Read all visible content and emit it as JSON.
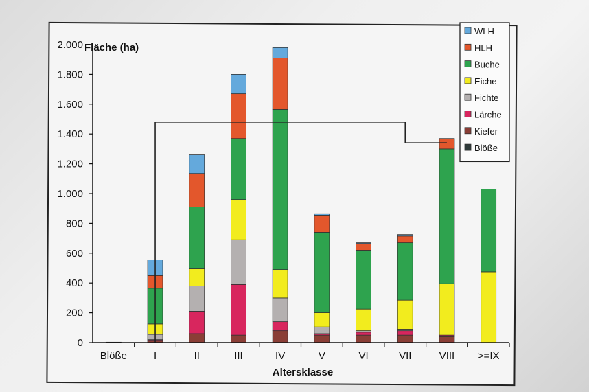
{
  "chart_data": {
    "type": "bar",
    "stacked": true,
    "ylabel": "Fläche (ha)",
    "xlabel": "Altersklasse",
    "ylim": [
      0,
      2000
    ],
    "yticks": [
      0,
      200,
      400,
      600,
      800,
      1000,
      1200,
      1400,
      1600,
      1800,
      2000
    ],
    "ytick_labels": [
      "0",
      "200",
      "400",
      "600",
      "800",
      "1.000",
      "1.200",
      "1.400",
      "1.600",
      "1.800",
      "2.000"
    ],
    "categories": [
      "Blöße",
      "I",
      "II",
      "III",
      "IV",
      "V",
      "VI",
      "VII",
      "VIII",
      ">=IX"
    ],
    "legend_position": "top-right",
    "grid": false,
    "series": [
      {
        "name": "Blöße",
        "color": "#2f3b3a",
        "values": [
          3,
          0,
          0,
          0,
          0,
          0,
          0,
          0,
          0,
          0
        ]
      },
      {
        "name": "Kiefer",
        "color": "#8a3e36",
        "values": [
          0,
          15,
          60,
          50,
          80,
          50,
          50,
          50,
          40,
          0
        ]
      },
      {
        "name": "Lärche",
        "color": "#d8265e",
        "values": [
          0,
          5,
          150,
          340,
          60,
          10,
          20,
          30,
          10,
          0
        ]
      },
      {
        "name": "Fichte",
        "color": "#b4b0b0",
        "values": [
          0,
          35,
          170,
          300,
          160,
          45,
          10,
          10,
          0,
          0
        ]
      },
      {
        "name": "Eiche",
        "color": "#f2ec1e",
        "values": [
          0,
          70,
          115,
          270,
          190,
          95,
          145,
          195,
          345,
          475
        ]
      },
      {
        "name": "Buche",
        "color": "#2ea34e",
        "values": [
          0,
          240,
          415,
          410,
          1075,
          540,
          395,
          385,
          905,
          555
        ]
      },
      {
        "name": "HLH",
        "color": "#e3572c",
        "values": [
          0,
          85,
          225,
          300,
          345,
          115,
          45,
          45,
          70,
          0
        ]
      },
      {
        "name": "WLH",
        "color": "#64a9dc",
        "values": [
          0,
          105,
          125,
          130,
          70,
          10,
          5,
          10,
          0,
          0
        ]
      }
    ],
    "reference_line": [
      {
        "category": "I",
        "value": 1480
      },
      {
        "category": "VII",
        "value": 1480
      },
      {
        "category": "VII",
        "value": 1340
      },
      {
        "category": "VIII",
        "value": 1340
      }
    ]
  }
}
